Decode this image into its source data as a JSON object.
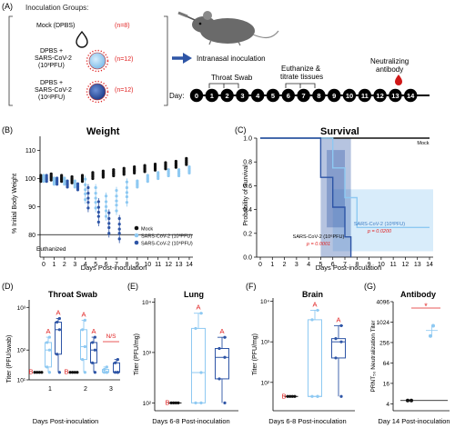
{
  "panelA": {
    "label": "(A)",
    "groups_title": "Inoculation Groups:",
    "groups": [
      {
        "lines": [
          "Mock (DPBS)"
        ],
        "n": "(n=8)"
      },
      {
        "lines": [
          "DPBS +",
          "SARS-CoV-2",
          "(10³PFU)"
        ],
        "n": "(n=12)"
      },
      {
        "lines": [
          "DPBS +",
          "SARS-CoV-2",
          "(10⁶PFU)"
        ],
        "n": "(n=12)"
      }
    ],
    "route": "Intranasal inoculation",
    "day_label": "Day:",
    "days": [
      "0",
      "1",
      "2",
      "3",
      "4",
      "5",
      "6",
      "7",
      "8",
      "9",
      "10",
      "11",
      "12",
      "13",
      "14"
    ],
    "throat_swab": "Throat Swab",
    "euthanize": [
      "Euthanize &",
      "titrate tissues"
    ],
    "neutralizing": [
      "Neutralizing",
      "antibody"
    ]
  },
  "colors": {
    "mock": "#111111",
    "low": "#8ec9f2",
    "high": "#2e55a6",
    "red": "#e02020"
  },
  "chart_data": [
    {
      "panel": "(B)",
      "type": "scatter",
      "title": "Weight",
      "xlabel": "Days Post-inoculation",
      "ylabel": "% Initial Body Weight",
      "x_ticks": [
        0,
        1,
        2,
        3,
        4,
        5,
        6,
        7,
        8,
        9,
        10,
        11,
        12,
        13,
        14
      ],
      "y_ticks": [
        80,
        90,
        100,
        110
      ],
      "ylim": [
        72,
        115
      ],
      "euthanized_line": 80,
      "euthanized_label": "Euthanized",
      "legend_placement": "bottom-right",
      "series": [
        {
          "name": "Mock",
          "color": "#111111",
          "x": [
            0,
            1,
            2,
            3,
            4,
            5,
            6,
            7,
            8,
            9,
            10,
            11,
            12,
            13,
            14
          ],
          "mean": [
            100,
            100.5,
            100,
            99.5,
            100,
            101,
            101.5,
            102,
            102.5,
            103,
            103.5,
            104,
            104.5,
            105,
            106
          ]
        },
        {
          "name": "SARS-CoV-2 (10³PFU)",
          "color": "#8ec9f2",
          "x": [
            0,
            1,
            2,
            3,
            4,
            5,
            6,
            7,
            8,
            9,
            10,
            11,
            12,
            13,
            14
          ],
          "mean": [
            100,
            99,
            99,
            98,
            96,
            93,
            90,
            92,
            95,
            98,
            100,
            101,
            102,
            102,
            103
          ]
        },
        {
          "name": "SARS-CoV-2 (10⁶PFU)",
          "color": "#2e55a6",
          "x": [
            0,
            1,
            2,
            3,
            4,
            5,
            6,
            7
          ],
          "mean": [
            100,
            99,
            98,
            97,
            93,
            88,
            84,
            82
          ]
        }
      ]
    },
    {
      "panel": "(C)",
      "type": "line",
      "title": "Survival",
      "xlabel": "Days Post-inoculation",
      "ylabel": "Probability of Survival",
      "x_ticks": [
        0,
        1,
        2,
        3,
        4,
        5,
        6,
        7,
        8,
        9,
        10,
        11,
        12,
        13,
        14
      ],
      "y_ticks": [
        0,
        0.2,
        0.4,
        0.6,
        0.8,
        1.0
      ],
      "ylim": [
        0,
        1
      ],
      "series": [
        {
          "name": "Mock",
          "color": "#111111",
          "steps": [
            [
              0,
              1
            ],
            [
              14,
              1
            ]
          ]
        },
        {
          "name": "SARS-CoV-2 (10³PFU)",
          "color": "#8ec9f2",
          "steps": [
            [
              0,
              1
            ],
            [
              6,
              1
            ],
            [
              6,
              0.75
            ],
            [
              7,
              0.75
            ],
            [
              7,
              0.5
            ],
            [
              8,
              0.5
            ],
            [
              8,
              0.25
            ],
            [
              14,
              0.25
            ]
          ]
        },
        {
          "name": "SARS-CoV-2 (10⁶PFU)",
          "color": "#2e55a6",
          "steps": [
            [
              0,
              1
            ],
            [
              5,
              1
            ],
            [
              5,
              0.67
            ],
            [
              6,
              0.67
            ],
            [
              6,
              0.42
            ],
            [
              7,
              0.42
            ],
            [
              7,
              0.17
            ],
            [
              7.5,
              0.17
            ],
            [
              7.5,
              0
            ]
          ]
        }
      ],
      "annotations": [
        {
          "label": "Mock"
        },
        {
          "label": "SARS-CoV-2 (10³PFU)",
          "p": "p = 0.0200"
        },
        {
          "label": "SARS-CoV-2 (10⁶PFU)",
          "p": "p = 0.0001"
        }
      ]
    },
    {
      "panel": "(D)",
      "type": "box",
      "title": "Throat Swab",
      "xlabel": "Days Post-inoculation",
      "ylabel": "Titer (PFU/swab)",
      "y_scale": "log",
      "y_ticks": [
        "10¹",
        "10²",
        "10³"
      ],
      "categories": [
        "1",
        "2",
        "3"
      ],
      "boxes": [
        {
          "day": "1",
          "group": "Mock",
          "min": 30,
          "q1": 30,
          "med": 30,
          "q3": 30,
          "max": 30,
          "letter": "B"
        },
        {
          "day": "1",
          "group": "10³",
          "min": 30,
          "q1": 40,
          "med": 100,
          "q3": 150,
          "max": 200,
          "letter": "A"
        },
        {
          "day": "1",
          "group": "10⁶",
          "min": 30,
          "q1": 80,
          "med": 300,
          "q3": 450,
          "max": 550,
          "letter": "A"
        },
        {
          "day": "2",
          "group": "Mock",
          "min": 30,
          "q1": 30,
          "med": 30,
          "q3": 30,
          "max": 30,
          "letter": "B"
        },
        {
          "day": "2",
          "group": "10³",
          "min": 30,
          "q1": 60,
          "med": 120,
          "q3": 300,
          "max": 500,
          "letter": "A"
        },
        {
          "day": "2",
          "group": "10⁶",
          "min": 30,
          "q1": 50,
          "med": 100,
          "q3": 150,
          "max": 200,
          "letter": "A"
        },
        {
          "day": "3",
          "group": "10³",
          "min": 30,
          "q1": 30,
          "med": 30,
          "q3": 35,
          "max": 40,
          "letter": ""
        },
        {
          "day": "3",
          "group": "10⁶",
          "min": 30,
          "q1": 30,
          "med": 30,
          "q3": 50,
          "max": 60,
          "letter": ""
        }
      ],
      "ns_label": "N/S"
    },
    {
      "panel": "(E)",
      "type": "box",
      "title": "Lung",
      "xlabel": "Days 6-8 Post-inoculation",
      "ylabel": "Titer (PFU/mg)",
      "y_scale": "log",
      "y_ticks": [
        "10²",
        "10³",
        "10⁴"
      ],
      "boxes": [
        {
          "group": "Mock",
          "min": 100,
          "q1": 100,
          "med": 100,
          "q3": 100,
          "max": 100,
          "letter": "B"
        },
        {
          "group": "10³",
          "min": 100,
          "q1": 100,
          "med": 400,
          "q3": 3000,
          "max": 6000,
          "letter": "A"
        },
        {
          "group": "10⁶",
          "min": 100,
          "q1": 300,
          "med": 800,
          "q3": 1200,
          "max": 2000,
          "letter": "A"
        }
      ]
    },
    {
      "panel": "(F)",
      "type": "box",
      "title": "Brain",
      "xlabel": "Days 6-8 Post-inoculation",
      "ylabel": "Titer (PFU/mg)",
      "y_scale": "log",
      "y_ticks": [
        "10²",
        "10³",
        "10⁴"
      ],
      "boxes": [
        {
          "group": "Mock",
          "min": 45,
          "q1": 45,
          "med": 45,
          "q3": 45,
          "max": 45,
          "letter": "B"
        },
        {
          "group": "10³",
          "min": 45,
          "q1": 45,
          "med": 45,
          "q3": 3500,
          "max": 6000,
          "letter": "A"
        },
        {
          "group": "10⁶",
          "min": 45,
          "q1": 400,
          "med": 1000,
          "q3": 1200,
          "max": 2500,
          "letter": "A"
        }
      ]
    },
    {
      "panel": "(G)",
      "type": "scatter",
      "title": "Antibody",
      "xlabel": "Day 14 Post-inoculation",
      "ylabel": "PRNT₅₀ Neutralization Titer",
      "y_scale": "log2",
      "y_ticks": [
        "4",
        "16",
        "64",
        "256",
        "1024",
        "4096"
      ],
      "points": [
        {
          "group": "Mock",
          "values": [
            5,
            5
          ]
        },
        {
          "group": "10³",
          "values": [
            400,
            800
          ]
        }
      ],
      "significance": "*"
    }
  ]
}
